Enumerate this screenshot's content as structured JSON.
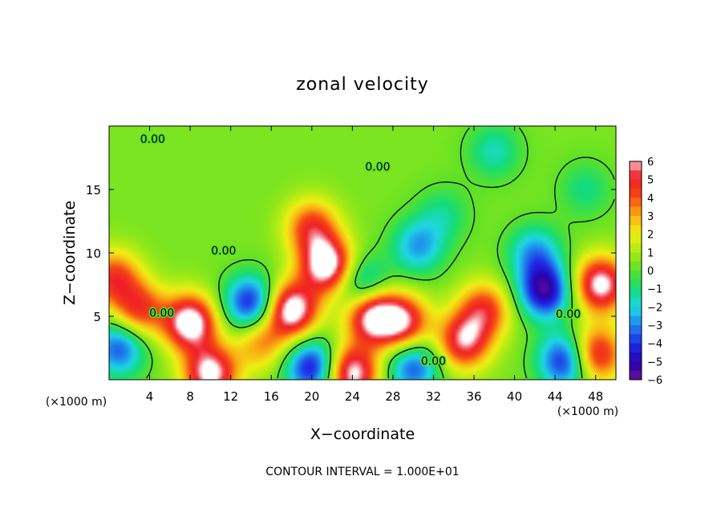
{
  "chart_data": {
    "type": "heatmap",
    "title": "zonal velocity",
    "xlabel": "X−coordinate",
    "ylabel": "Z−coordinate",
    "x_unit_left": "(×1000 m)",
    "x_unit_right": "(×1000 m)",
    "footer": "CONTOUR INTERVAL = 1.000E+01",
    "contour_label": "0.00",
    "xlim": [
      0,
      50
    ],
    "ylim": [
      0,
      20
    ],
    "xticks": [
      4,
      8,
      12,
      16,
      20,
      24,
      28,
      32,
      36,
      40,
      44,
      48
    ],
    "yticks": [
      5,
      10,
      15
    ],
    "colorbar": {
      "ticks": [
        "6",
        "5",
        "4",
        "3",
        "2",
        "1",
        "0",
        "−1",
        "−2",
        "−3",
        "−4",
        "−5",
        "−6"
      ],
      "range": [
        -6,
        6
      ]
    },
    "features": [
      {
        "x": 8,
        "z": 4.5,
        "v": 6.5
      },
      {
        "x": 3,
        "z": 5.5,
        "v": 4
      },
      {
        "x": 0.5,
        "z": 8,
        "v": 4
      },
      {
        "x": 18,
        "z": 5.5,
        "v": 6.5
      },
      {
        "x": 14,
        "z": 6,
        "v": -5
      },
      {
        "x": 21.5,
        "z": 9,
        "v": 6.5
      },
      {
        "x": 20,
        "z": 12,
        "v": 4
      },
      {
        "x": 26,
        "z": 5,
        "v": 6
      },
      {
        "x": 29,
        "z": 4.5,
        "v": 5
      },
      {
        "x": 25,
        "z": 7.5,
        "v": -3
      },
      {
        "x": 30.5,
        "z": 10.5,
        "v": -3
      },
      {
        "x": 33,
        "z": 13,
        "v": -1.5
      },
      {
        "x": 35,
        "z": 3,
        "v": 5
      },
      {
        "x": 37,
        "z": 5.5,
        "v": 4
      },
      {
        "x": 43,
        "z": 7,
        "v": -5.5
      },
      {
        "x": 42,
        "z": 10,
        "v": -3
      },
      {
        "x": 48.5,
        "z": 7.5,
        "v": 6
      },
      {
        "x": 48,
        "z": 2,
        "v": 5
      },
      {
        "x": 45,
        "z": 1.5,
        "v": -5
      },
      {
        "x": 1,
        "z": 2.5,
        "v": -4
      },
      {
        "x": 10,
        "z": 0.5,
        "v": 6
      },
      {
        "x": 20,
        "z": 1,
        "v": -5
      },
      {
        "x": 24,
        "z": 0.5,
        "v": 6
      },
      {
        "x": 30,
        "z": 1,
        "v": -4
      },
      {
        "x": 47,
        "z": 15,
        "v": -1.5
      },
      {
        "x": 38,
        "z": 18,
        "v": -2
      },
      {
        "x": 15,
        "z": 3,
        "v": 3
      }
    ],
    "zero_contour_label_positions": [
      {
        "x": 4.3,
        "z": 19
      },
      {
        "x": 26.5,
        "z": 16.8
      },
      {
        "x": 11.3,
        "z": 10.2
      },
      {
        "x": 5.2,
        "z": 5.3
      },
      {
        "x": 32,
        "z": 1.5
      },
      {
        "x": 45.3,
        "z": 5.2
      }
    ]
  }
}
